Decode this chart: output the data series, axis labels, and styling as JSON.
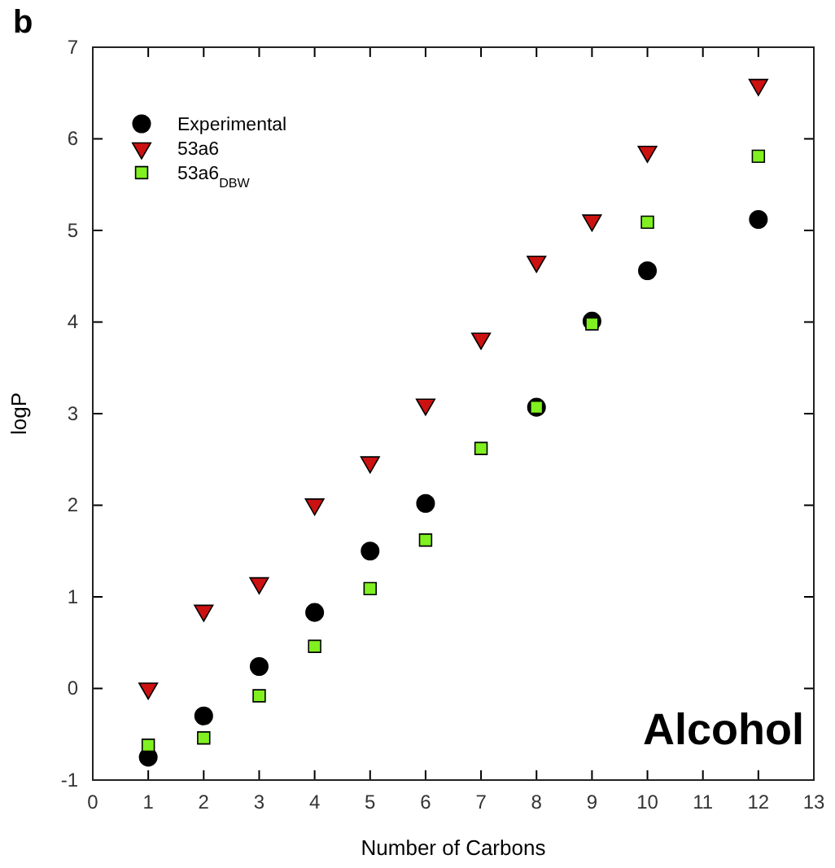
{
  "chart_data": {
    "type": "scatter",
    "title": "b",
    "xlabel": "Number of Carbons",
    "ylabel": "logP",
    "annotations": [
      "Alcohol"
    ],
    "x": [
      1,
      2,
      3,
      4,
      5,
      6,
      7,
      8,
      9,
      10,
      12
    ],
    "series": [
      {
        "name": "Experimental",
        "color": "#000000",
        "marker": "circle",
        "values": [
          -0.75,
          -0.3,
          0.24,
          0.83,
          1.5,
          2.02,
          null,
          3.07,
          4.01,
          4.56,
          5.12
        ]
      },
      {
        "name": "53a6",
        "color": "#cc1111",
        "marker": "triangle",
        "values": [
          0.0,
          0.85,
          1.15,
          2.01,
          2.47,
          3.1,
          3.82,
          4.66,
          5.11,
          5.86,
          6.59
        ]
      },
      {
        "name": "53a6$_{DBW}$",
        "color": "#80f020",
        "marker": "square",
        "values": [
          -0.62,
          -0.54,
          -0.08,
          0.46,
          1.09,
          1.62,
          2.62,
          3.07,
          3.98,
          5.09,
          5.81
        ]
      }
    ],
    "xlim": [
      0,
      13
    ],
    "xticks": [
      0,
      1,
      2,
      3,
      4,
      5,
      6,
      7,
      8,
      9,
      10,
      11,
      12,
      13
    ],
    "ylim": [
      -1,
      7
    ],
    "yticks": [
      -1,
      0,
      1,
      2,
      3,
      4,
      5,
      6,
      7
    ],
    "legend": "top left",
    "grid": false
  }
}
